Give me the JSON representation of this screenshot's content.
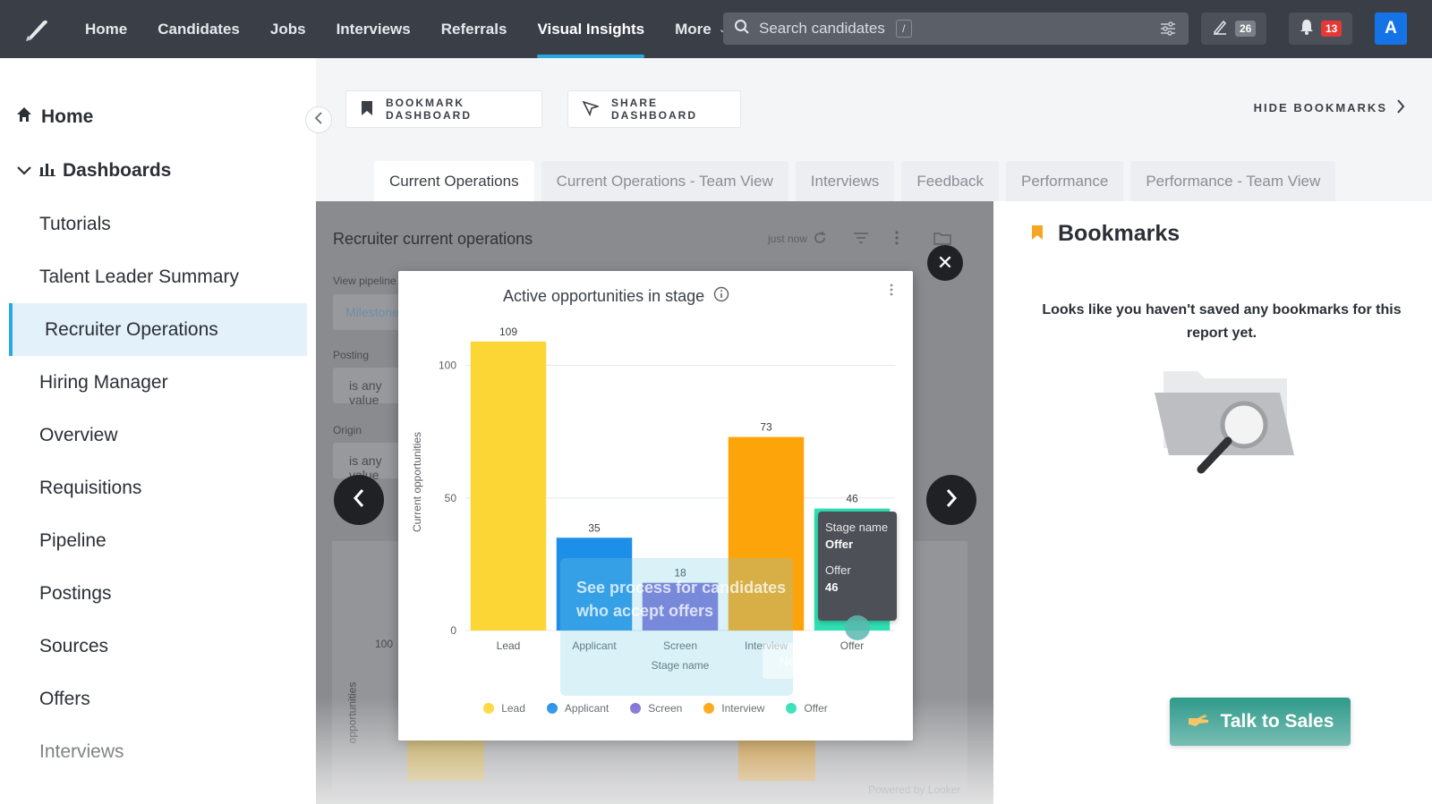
{
  "topnav": {
    "items": [
      {
        "label": "Home"
      },
      {
        "label": "Candidates"
      },
      {
        "label": "Jobs"
      },
      {
        "label": "Interviews"
      },
      {
        "label": "Referrals"
      },
      {
        "label": "Visual Insights",
        "active": true
      },
      {
        "label": "More"
      }
    ],
    "search_placeholder": "Search candidates",
    "search_shortcut": "/",
    "tasks_count": "26",
    "notifications_count": "13",
    "avatar_initial": "A",
    "accent_color": "#2aa9e0",
    "badge_color": "#e53935"
  },
  "sidebar": {
    "home_label": "Home",
    "dashboards_label": "Dashboards",
    "items": [
      {
        "label": "Tutorials"
      },
      {
        "label": "Talent Leader Summary"
      },
      {
        "label": "Recruiter Operations",
        "active": true
      },
      {
        "label": "Hiring Manager"
      },
      {
        "label": "Overview"
      },
      {
        "label": "Requisitions"
      },
      {
        "label": "Pipeline"
      },
      {
        "label": "Postings"
      },
      {
        "label": "Sources"
      },
      {
        "label": "Offers"
      },
      {
        "label": "Interviews"
      }
    ]
  },
  "toolbar": {
    "bookmark_label": "BOOKMARK DASHBOARD",
    "share_label": "SHARE DASHBOARD",
    "hide_bookmarks_label": "HIDE BOOKMARKS"
  },
  "tabs": [
    {
      "label": "Current Operations",
      "active": true
    },
    {
      "label": "Current Operations - Team View"
    },
    {
      "label": "Interviews"
    },
    {
      "label": "Feedback"
    },
    {
      "label": "Performance"
    },
    {
      "label": "Performance - Team View"
    }
  ],
  "dashboard": {
    "title": "Recruiter current operations",
    "refreshed": "just now",
    "filter1_label": "View pipeline",
    "filter1_value": "Milestone",
    "filter2_label": "Posting",
    "filter2_value": "is any value",
    "filter3_label": "Origin",
    "filter3_value": "is any value",
    "bg_axis_tick": "100",
    "bg_axis_label": "opportunities",
    "powered_by": "Powered by Looker"
  },
  "bookmarks": {
    "title": "Bookmarks",
    "empty_message": "Looks like you haven't saved any bookmarks for this report yet.",
    "talk_to_sales_label": "Talk to Sales",
    "icon_color": "#f5a623"
  },
  "modal": {
    "title": "Active opportunities in stage",
    "tooltip": {
      "field_label": "Stage name",
      "field_value": "Offer",
      "measure_label": "Offer",
      "measure_value": "46"
    },
    "hint_text_line1": "See process for candidates",
    "hint_text_line2": "who accept offers",
    "hint_next": "Next"
  },
  "chart_data": {
    "type": "bar",
    "title": "Active opportunities in stage",
    "xlabel": "Stage name",
    "ylabel": "Current opportunities",
    "categories": [
      "Lead",
      "Applicant",
      "Screen",
      "Interview",
      "Offer"
    ],
    "values": [
      109,
      35,
      18,
      73,
      46
    ],
    "colors": [
      "#fcd635",
      "#1e8fe8",
      "#7b6fd6",
      "#fca40a",
      "#2fe0b3"
    ],
    "ylim": [
      0,
      112
    ],
    "yticks": [
      0,
      50,
      100
    ],
    "grid": true,
    "legend_position": "bottom",
    "data_labels": true
  }
}
